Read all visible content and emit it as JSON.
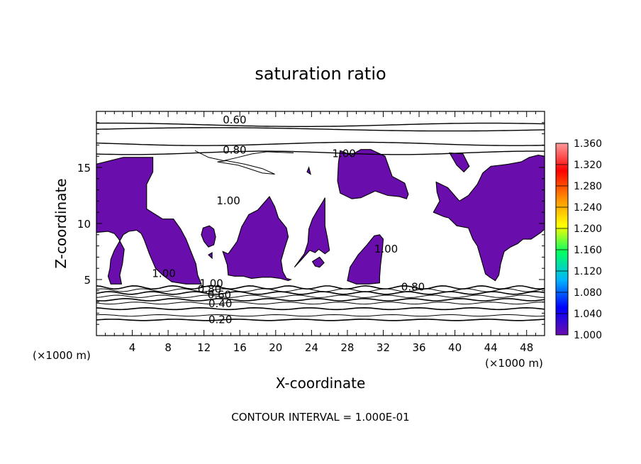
{
  "chart_data": {
    "type": "heatmap",
    "title": "saturation ratio",
    "xlabel": "X-coordinate",
    "ylabel": "Z-coordinate",
    "x_unit_left": "(×1000 m)",
    "x_unit_right": "(×1000 m)",
    "footer": "CONTOUR INTERVAL = 1.000E-01",
    "xlim": [
      0,
      50
    ],
    "ylim": [
      0,
      20
    ],
    "x_ticks": [
      4,
      8,
      12,
      16,
      20,
      24,
      28,
      32,
      36,
      40,
      44,
      48
    ],
    "y_ticks": [
      5,
      10,
      15
    ],
    "contour_interval": 0.1,
    "colorbar": {
      "min": 1.0,
      "max": 1.36,
      "ticks": [
        "1.000",
        "1.040",
        "1.080",
        "1.120",
        "1.160",
        "1.200",
        "1.240",
        "1.280",
        "1.320",
        "1.360"
      ],
      "colors": [
        "#6a0dad",
        "#0000ff",
        "#00b4ff",
        "#00ff64",
        "#ffff00",
        "#ff8c00",
        "#ff0000",
        "#ff9a9a"
      ]
    },
    "contour_labels": [
      {
        "text": "0.60",
        "x": 14.1,
        "y": 19.3
      },
      {
        "text": "0.80",
        "x": 14.1,
        "y": 16.6
      },
      {
        "text": "1.00",
        "x": 26.3,
        "y": 16.3
      },
      {
        "text": "1.00",
        "x": 13.4,
        "y": 12.1
      },
      {
        "text": "1.00",
        "x": 6.2,
        "y": 5.6
      },
      {
        "text": "1.00",
        "x": 11.5,
        "y": 4.7
      },
      {
        "text": "0.80",
        "x": 11.3,
        "y": 4.2
      },
      {
        "text": "0.60",
        "x": 12.4,
        "y": 3.7
      },
      {
        "text": "0.40",
        "x": 12.5,
        "y": 2.9
      },
      {
        "text": "0.20",
        "x": 12.5,
        "y": 1.5
      },
      {
        "text": "1.00",
        "x": 31.0,
        "y": 7.8
      },
      {
        "text": "0.80",
        "x": 34.0,
        "y": 4.4
      }
    ],
    "supersaturated_regions": [
      [
        [
          0,
          15.3
        ],
        [
          3,
          15.9
        ],
        [
          6.3,
          15.9
        ],
        [
          6.3,
          14.6
        ],
        [
          5.6,
          13.5
        ],
        [
          5.6,
          11.3
        ],
        [
          6.4,
          10.9
        ],
        [
          7.4,
          10.4
        ],
        [
          8.3,
          10.4
        ],
        [
          8.6,
          10.4
        ],
        [
          9.4,
          9.5
        ],
        [
          10.0,
          8.6
        ],
        [
          10.5,
          7.6
        ],
        [
          11.1,
          6.4
        ],
        [
          11.3,
          5.4
        ],
        [
          11.7,
          4.6
        ],
        [
          10.0,
          4.6
        ],
        [
          8.4,
          4.8
        ],
        [
          7.4,
          5.4
        ],
        [
          6.6,
          6.0
        ],
        [
          5.9,
          7.3
        ],
        [
          5.3,
          8.6
        ],
        [
          5.0,
          9.1
        ],
        [
          4.5,
          9.4
        ],
        [
          3.6,
          9.3
        ],
        [
          3.0,
          9.0
        ],
        [
          2.5,
          8.3
        ],
        [
          2.0,
          7.6
        ],
        [
          1.6,
          6.8
        ],
        [
          1.5,
          6.0
        ],
        [
          1.3,
          5.3
        ],
        [
          1.6,
          4.6
        ],
        [
          2.8,
          4.6
        ],
        [
          2.6,
          5.4
        ],
        [
          2.9,
          6.4
        ],
        [
          3.1,
          7.7
        ],
        [
          2.5,
          8.6
        ],
        [
          2.0,
          9.1
        ],
        [
          1.3,
          9.3
        ],
        [
          0,
          9.2
        ]
      ],
      [
        [
          11.9,
          9.6
        ],
        [
          12.6,
          9.8
        ],
        [
          13.1,
          9.5
        ],
        [
          13.3,
          8.8
        ],
        [
          13.1,
          8.1
        ],
        [
          12.5,
          7.9
        ],
        [
          12.0,
          8.4
        ],
        [
          11.7,
          9.0
        ]
      ],
      [
        [
          14.7,
          7.3
        ],
        [
          15.7,
          8.4
        ],
        [
          16.2,
          9.7
        ],
        [
          17.0,
          10.8
        ],
        [
          18.0,
          11.2
        ],
        [
          19.3,
          12.4
        ],
        [
          19.9,
          11.5
        ],
        [
          20.3,
          10.5
        ],
        [
          21.2,
          9.6
        ],
        [
          21.4,
          8.8
        ],
        [
          21.0,
          7.8
        ],
        [
          20.6,
          6.7
        ],
        [
          20.8,
          5.7
        ],
        [
          21.2,
          5.1
        ],
        [
          21.7,
          5.0
        ],
        [
          21.4,
          4.9
        ],
        [
          20.5,
          5.1
        ],
        [
          19.5,
          5.2
        ],
        [
          18.5,
          5.2
        ],
        [
          17.3,
          5.1
        ],
        [
          16.4,
          5.3
        ],
        [
          15.4,
          5.3
        ],
        [
          14.7,
          5.4
        ],
        [
          14.6,
          6.3
        ],
        [
          14.1,
          7.5
        ]
      ],
      [
        [
          22.1,
          6.1
        ],
        [
          23.2,
          7.3
        ],
        [
          23.6,
          8.3
        ],
        [
          23.7,
          9.5
        ],
        [
          24.1,
          10.4
        ],
        [
          24.6,
          11.1
        ],
        [
          25.3,
          12.0
        ],
        [
          25.5,
          12.3
        ],
        [
          25.5,
          11.1
        ],
        [
          25.5,
          9.8
        ],
        [
          25.8,
          8.6
        ],
        [
          26.0,
          7.6
        ],
        [
          25.5,
          7.3
        ],
        [
          24.8,
          7.7
        ],
        [
          24.4,
          7.4
        ],
        [
          23.8,
          7.6
        ],
        [
          22.9,
          6.8
        ]
      ],
      [
        [
          24.1,
          6.6
        ],
        [
          24.4,
          6.2
        ],
        [
          24.9,
          6.1
        ],
        [
          25.4,
          6.5
        ],
        [
          24.9,
          7.0
        ]
      ],
      [
        [
          27.2,
          16.5
        ],
        [
          28.4,
          16.1
        ],
        [
          29.5,
          16.6
        ],
        [
          30.6,
          16.6
        ],
        [
          32.2,
          16.0
        ],
        [
          33.0,
          14.2
        ],
        [
          34.4,
          13.6
        ],
        [
          34.8,
          12.6
        ],
        [
          34.6,
          12.2
        ],
        [
          33.8,
          12.4
        ],
        [
          32.5,
          12.5
        ],
        [
          31.1,
          12.9
        ],
        [
          29.5,
          12.3
        ],
        [
          28.5,
          12.2
        ],
        [
          27.2,
          12.7
        ],
        [
          26.9,
          13.8
        ],
        [
          27.0,
          15.4
        ]
      ],
      [
        [
          28.3,
          6.1
        ],
        [
          29.2,
          7.2
        ],
        [
          30.2,
          8.1
        ],
        [
          31.0,
          8.9
        ],
        [
          31.6,
          9.0
        ],
        [
          32.0,
          8.6
        ],
        [
          31.9,
          7.6
        ],
        [
          31.7,
          6.3
        ],
        [
          31.6,
          5.2
        ],
        [
          31.6,
          4.7
        ],
        [
          30.4,
          4.6
        ],
        [
          29.0,
          4.6
        ],
        [
          28.0,
          4.9
        ]
      ],
      [
        [
          39.4,
          16.3
        ],
        [
          40.2,
          15.2
        ],
        [
          41.0,
          14.6
        ],
        [
          41.6,
          15.1
        ],
        [
          40.9,
          16.2
        ]
      ],
      [
        [
          37.6,
          11.0
        ],
        [
          38.3,
          12.0
        ],
        [
          38.0,
          12.8
        ],
        [
          37.9,
          13.7
        ],
        [
          39.2,
          13.2
        ],
        [
          40.5,
          12.0
        ],
        [
          41.5,
          12.5
        ],
        [
          42.5,
          13.5
        ],
        [
          43.1,
          14.5
        ],
        [
          44.0,
          15.1
        ],
        [
          45.1,
          15.2
        ],
        [
          46.0,
          15.3
        ],
        [
          47.4,
          15.5
        ],
        [
          48.3,
          15.9
        ],
        [
          49.3,
          16.1
        ],
        [
          50,
          16.0
        ],
        [
          50,
          9.5
        ],
        [
          49.6,
          9.2
        ],
        [
          48.5,
          8.6
        ],
        [
          47.6,
          8.6
        ],
        [
          47.0,
          8.2
        ],
        [
          46.2,
          7.9
        ],
        [
          45.5,
          7.5
        ],
        [
          45.1,
          6.4
        ],
        [
          44.9,
          5.4
        ],
        [
          44.5,
          4.9
        ],
        [
          43.9,
          5.2
        ],
        [
          43.4,
          5.5
        ],
        [
          42.9,
          6.9
        ],
        [
          42.5,
          8.0
        ],
        [
          42.0,
          8.6
        ],
        [
          41.5,
          9.6
        ],
        [
          40.2,
          9.8
        ],
        [
          39.3,
          10.5
        ],
        [
          38.8,
          10.6
        ]
      ],
      [
        [
          23.5,
          14.6
        ],
        [
          23.7,
          15.0
        ],
        [
          23.9,
          14.4
        ]
      ],
      [
        [
          12.5,
          7.2
        ],
        [
          12.9,
          7.4
        ],
        [
          12.9,
          6.9
        ]
      ]
    ]
  }
}
